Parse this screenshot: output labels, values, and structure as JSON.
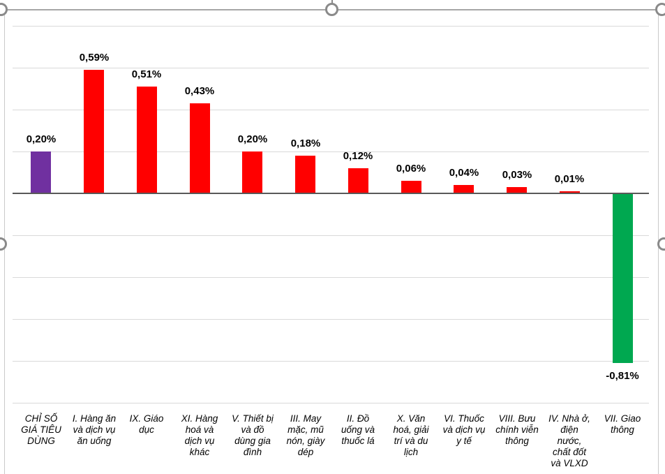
{
  "chart_data": {
    "type": "bar",
    "title": "",
    "xlabel": "",
    "ylabel": "",
    "ylim": [
      -1.0,
      0.8
    ],
    "grid_step": 0.2,
    "grid_on": true,
    "legend": null,
    "categories": [
      "CHỈ SỐ\nGIÁ TIÊU\nDÙNG",
      "I. Hàng ăn\nvà dịch vụ\năn uống",
      "IX. Giáo\ndục",
      "XI. Hàng\nhoá và\ndịch vụ\nkhác",
      "V. Thiết bị\nvà đồ\ndùng gia\nđình",
      "III. May\nmặc, mũ\nnón, giày\ndép",
      "II. Đồ\nuống và\nthuốc lá",
      "X. Văn\nhoá, giải\ntrí và du\nlịch",
      "VI. Thuốc\nvà dịch vụ\ny tế",
      "VIII. Bưu\nchính viễn\nthông",
      "IV. Nhà ở,\nđiện\nnước,\nchất đốt\nvà VLXD",
      "VII. Giao\nthông"
    ],
    "values": [
      0.2,
      0.59,
      0.51,
      0.43,
      0.2,
      0.18,
      0.12,
      0.06,
      0.04,
      0.03,
      0.01,
      -0.81
    ],
    "value_labels": [
      "0,20%",
      "0,59%",
      "0,51%",
      "0,43%",
      "0,20%",
      "0,18%",
      "0,12%",
      "0,06%",
      "0,04%",
      "0,03%",
      "0,01%",
      "-0,81%"
    ],
    "bar_colors": [
      "#7030A0",
      "#FF0000",
      "#FF0000",
      "#FF0000",
      "#FF0000",
      "#FF0000",
      "#FF0000",
      "#FF0000",
      "#FF0000",
      "#FF0000",
      "#FF0000",
      "#00A850"
    ],
    "colors": {
      "cpi_total": "#7030A0",
      "increase": "#FF0000",
      "decrease": "#00A850",
      "gridline": "#d9d9d9",
      "axis": "#595959"
    }
  },
  "selection": {
    "border_color": "#a6a6a6",
    "handle_color": "#8a8a8a"
  }
}
